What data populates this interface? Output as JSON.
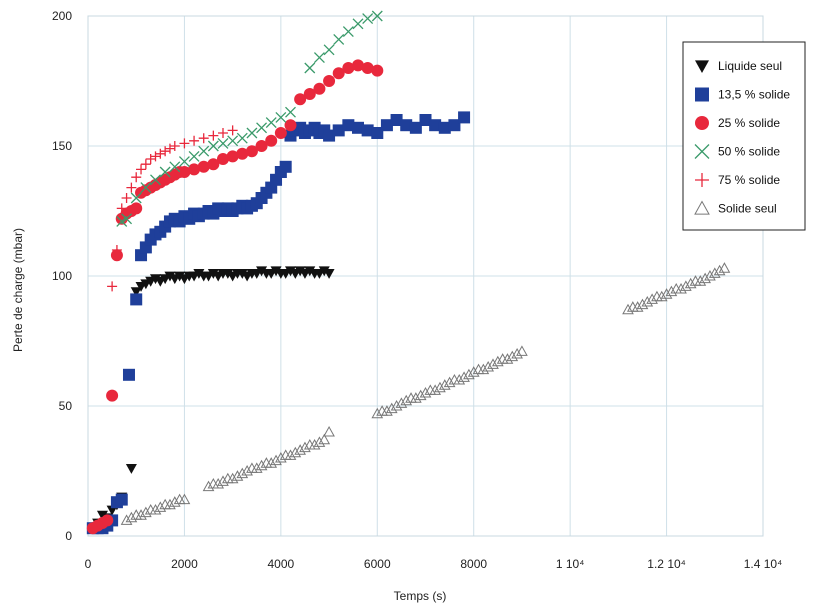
{
  "chart_data": {
    "type": "scatter",
    "xlabel": "Temps (s)",
    "ylabel": "Perte de charge (mbar)",
    "xlim": [
      0,
      14000
    ],
    "ylim": [
      0,
      200
    ],
    "grid": true,
    "legend_position": "top-right",
    "x_ticks": [
      {
        "value": 0,
        "label": "0"
      },
      {
        "value": 2000,
        "label": "2000"
      },
      {
        "value": 4000,
        "label": "4000"
      },
      {
        "value": 6000,
        "label": "6000"
      },
      {
        "value": 8000,
        "label": "8000"
      },
      {
        "value": 10000,
        "label": "1 10⁴"
      },
      {
        "value": 12000,
        "label": "1.2 10⁴"
      },
      {
        "value": 14000,
        "label": "1.4 10⁴"
      }
    ],
    "y_ticks": [
      {
        "value": 0,
        "label": "0"
      },
      {
        "value": 50,
        "label": "50"
      },
      {
        "value": 100,
        "label": "100"
      },
      {
        "value": 150,
        "label": "150"
      },
      {
        "value": 200,
        "label": "200"
      }
    ],
    "series": [
      {
        "name": "Liquide seul",
        "marker": "triangle-down",
        "color": "#111111",
        "points": [
          [
            100,
            3
          ],
          [
            200,
            5
          ],
          [
            300,
            8
          ],
          [
            400,
            7
          ],
          [
            500,
            10
          ],
          [
            600,
            12
          ],
          [
            700,
            15
          ],
          [
            900,
            26
          ],
          [
            1000,
            94
          ],
          [
            1100,
            96
          ],
          [
            1200,
            97
          ],
          [
            1300,
            98
          ],
          [
            1400,
            99
          ],
          [
            1500,
            98
          ],
          [
            1600,
            99
          ],
          [
            1700,
            100
          ],
          [
            1800,
            99
          ],
          [
            1900,
            100
          ],
          [
            2000,
            99
          ],
          [
            2100,
            100
          ],
          [
            2200,
            100
          ],
          [
            2300,
            101
          ],
          [
            2400,
            100
          ],
          [
            2500,
            100
          ],
          [
            2600,
            101
          ],
          [
            2700,
            100
          ],
          [
            2800,
            101
          ],
          [
            2900,
            101
          ],
          [
            3000,
            100
          ],
          [
            3100,
            101
          ],
          [
            3200,
            101
          ],
          [
            3300,
            100
          ],
          [
            3400,
            101
          ],
          [
            3500,
            101
          ],
          [
            3600,
            102
          ],
          [
            3700,
            101
          ],
          [
            3800,
            101
          ],
          [
            3900,
            102
          ],
          [
            4000,
            101
          ],
          [
            4100,
            101
          ],
          [
            4200,
            102
          ],
          [
            4300,
            101
          ],
          [
            4400,
            102
          ],
          [
            4500,
            101
          ],
          [
            4600,
            102
          ],
          [
            4700,
            101
          ],
          [
            4800,
            101
          ],
          [
            4900,
            102
          ],
          [
            5000,
            101
          ]
        ]
      },
      {
        "name": "13,5 % solide",
        "marker": "square",
        "color": "#1f3f9a",
        "points": [
          [
            100,
            3
          ],
          [
            200,
            3
          ],
          [
            300,
            3
          ],
          [
            400,
            4
          ],
          [
            500,
            6
          ],
          [
            600,
            13
          ],
          [
            700,
            14
          ],
          [
            850,
            62
          ],
          [
            1000,
            91
          ],
          [
            1100,
            108
          ],
          [
            1200,
            111
          ],
          [
            1300,
            114
          ],
          [
            1400,
            116
          ],
          [
            1500,
            117
          ],
          [
            1600,
            119
          ],
          [
            1700,
            121
          ],
          [
            1800,
            122
          ],
          [
            1900,
            121
          ],
          [
            2000,
            123
          ],
          [
            2100,
            122
          ],
          [
            2200,
            124
          ],
          [
            2300,
            123
          ],
          [
            2400,
            124
          ],
          [
            2500,
            125
          ],
          [
            2600,
            124
          ],
          [
            2700,
            126
          ],
          [
            2800,
            125
          ],
          [
            2900,
            126
          ],
          [
            3000,
            125
          ],
          [
            3100,
            126
          ],
          [
            3200,
            127
          ],
          [
            3300,
            126
          ],
          [
            3400,
            127
          ],
          [
            3500,
            128
          ],
          [
            3600,
            130
          ],
          [
            3700,
            132
          ],
          [
            3800,
            134
          ],
          [
            3900,
            137
          ],
          [
            4000,
            140
          ],
          [
            4100,
            142
          ],
          [
            4200,
            154
          ],
          [
            4300,
            156
          ],
          [
            4400,
            157
          ],
          [
            4500,
            155
          ],
          [
            4600,
            156
          ],
          [
            4700,
            157
          ],
          [
            4800,
            155
          ],
          [
            4900,
            156
          ],
          [
            5000,
            154
          ],
          [
            5200,
            156
          ],
          [
            5400,
            158
          ],
          [
            5600,
            157
          ],
          [
            5800,
            156
          ],
          [
            6000,
            155
          ],
          [
            6200,
            158
          ],
          [
            6400,
            160
          ],
          [
            6600,
            158
          ],
          [
            6800,
            157
          ],
          [
            7000,
            160
          ],
          [
            7200,
            158
          ],
          [
            7400,
            157
          ],
          [
            7600,
            158
          ],
          [
            7800,
            161
          ]
        ]
      },
      {
        "name": "25 % solide",
        "marker": "circle",
        "color": "#e8283c",
        "points": [
          [
            100,
            3
          ],
          [
            200,
            4
          ],
          [
            300,
            5
          ],
          [
            400,
            6
          ],
          [
            500,
            54
          ],
          [
            600,
            108
          ],
          [
            700,
            122
          ],
          [
            800,
            124
          ],
          [
            900,
            125
          ],
          [
            1000,
            126
          ],
          [
            1100,
            132
          ],
          [
            1200,
            133
          ],
          [
            1300,
            134
          ],
          [
            1400,
            135
          ],
          [
            1500,
            136
          ],
          [
            1600,
            137
          ],
          [
            1700,
            138
          ],
          [
            1800,
            139
          ],
          [
            1900,
            140
          ],
          [
            2000,
            140
          ],
          [
            2200,
            141
          ],
          [
            2400,
            142
          ],
          [
            2600,
            143
          ],
          [
            2800,
            145
          ],
          [
            3000,
            146
          ],
          [
            3200,
            147
          ],
          [
            3400,
            148
          ],
          [
            3600,
            150
          ],
          [
            3800,
            152
          ],
          [
            4000,
            155
          ],
          [
            4200,
            158
          ],
          [
            4400,
            168
          ],
          [
            4600,
            170
          ],
          [
            4800,
            172
          ],
          [
            5000,
            175
          ],
          [
            5200,
            178
          ],
          [
            5400,
            180
          ],
          [
            5600,
            181
          ],
          [
            5800,
            180
          ],
          [
            6000,
            179
          ]
        ]
      },
      {
        "name": "50 % solide",
        "marker": "x",
        "color": "#3a9a6a",
        "points": [
          [
            700,
            121
          ],
          [
            800,
            122
          ],
          [
            1000,
            130
          ],
          [
            1200,
            134
          ],
          [
            1400,
            137
          ],
          [
            1600,
            140
          ],
          [
            1800,
            142
          ],
          [
            2000,
            144
          ],
          [
            2200,
            146
          ],
          [
            2400,
            148
          ],
          [
            2600,
            150
          ],
          [
            2800,
            151
          ],
          [
            3000,
            152
          ],
          [
            3200,
            153
          ],
          [
            3400,
            155
          ],
          [
            3600,
            157
          ],
          [
            3800,
            159
          ],
          [
            4000,
            161
          ],
          [
            4200,
            163
          ],
          [
            4600,
            180
          ],
          [
            4800,
            184
          ],
          [
            5000,
            187
          ],
          [
            5200,
            191
          ],
          [
            5400,
            194
          ],
          [
            5600,
            197
          ],
          [
            5800,
            199
          ],
          [
            6000,
            200
          ]
        ]
      },
      {
        "name": "75 % solide",
        "marker": "plus",
        "color": "#e8283c",
        "points": [
          [
            500,
            96
          ],
          [
            600,
            110
          ],
          [
            700,
            126
          ],
          [
            800,
            130
          ],
          [
            900,
            134
          ],
          [
            1000,
            138
          ],
          [
            1100,
            141
          ],
          [
            1200,
            143
          ],
          [
            1300,
            145
          ],
          [
            1400,
            146
          ],
          [
            1500,
            147
          ],
          [
            1600,
            148
          ],
          [
            1700,
            149
          ],
          [
            1800,
            150
          ],
          [
            2000,
            151
          ],
          [
            2200,
            152
          ],
          [
            2400,
            153
          ],
          [
            2600,
            154
          ],
          [
            2800,
            155
          ],
          [
            3000,
            156
          ]
        ]
      },
      {
        "name": "Solide seul",
        "marker": "triangle-up-open",
        "color": "#777777",
        "points": [
          [
            800,
            6
          ],
          [
            900,
            7
          ],
          [
            1000,
            8
          ],
          [
            1100,
            8
          ],
          [
            1200,
            9
          ],
          [
            1300,
            10
          ],
          [
            1400,
            10
          ],
          [
            1500,
            11
          ],
          [
            1600,
            12
          ],
          [
            1700,
            12
          ],
          [
            1800,
            13
          ],
          [
            1900,
            14
          ],
          [
            2000,
            14
          ],
          [
            2500,
            19
          ],
          [
            2600,
            20
          ],
          [
            2700,
            20
          ],
          [
            2800,
            21
          ],
          [
            2900,
            22
          ],
          [
            3000,
            22
          ],
          [
            3100,
            23
          ],
          [
            3200,
            24
          ],
          [
            3300,
            25
          ],
          [
            3400,
            26
          ],
          [
            3500,
            26
          ],
          [
            3600,
            27
          ],
          [
            3700,
            28
          ],
          [
            3800,
            28
          ],
          [
            3900,
            29
          ],
          [
            4000,
            30
          ],
          [
            4100,
            31
          ],
          [
            4200,
            31
          ],
          [
            4300,
            32
          ],
          [
            4400,
            33
          ],
          [
            4500,
            34
          ],
          [
            4600,
            35
          ],
          [
            4700,
            35
          ],
          [
            4800,
            36
          ],
          [
            4900,
            37
          ],
          [
            5000,
            40
          ],
          [
            6000,
            47
          ],
          [
            6100,
            48
          ],
          [
            6200,
            48
          ],
          [
            6300,
            49
          ],
          [
            6400,
            50
          ],
          [
            6500,
            51
          ],
          [
            6600,
            52
          ],
          [
            6700,
            53
          ],
          [
            6800,
            53
          ],
          [
            6900,
            54
          ],
          [
            7000,
            55
          ],
          [
            7100,
            56
          ],
          [
            7200,
            56
          ],
          [
            7300,
            57
          ],
          [
            7400,
            58
          ],
          [
            7500,
            59
          ],
          [
            7600,
            60
          ],
          [
            7700,
            60
          ],
          [
            7800,
            61
          ],
          [
            7900,
            62
          ],
          [
            8000,
            63
          ],
          [
            8100,
            64
          ],
          [
            8200,
            64
          ],
          [
            8300,
            65
          ],
          [
            8400,
            66
          ],
          [
            8500,
            67
          ],
          [
            8600,
            68
          ],
          [
            8700,
            68
          ],
          [
            8800,
            69
          ],
          [
            8900,
            70
          ],
          [
            9000,
            71
          ],
          [
            11200,
            87
          ],
          [
            11300,
            88
          ],
          [
            11400,
            88
          ],
          [
            11500,
            89
          ],
          [
            11600,
            90
          ],
          [
            11700,
            91
          ],
          [
            11800,
            92
          ],
          [
            11900,
            92
          ],
          [
            12000,
            93
          ],
          [
            12100,
            94
          ],
          [
            12200,
            95
          ],
          [
            12300,
            95
          ],
          [
            12400,
            96
          ],
          [
            12500,
            97
          ],
          [
            12600,
            98
          ],
          [
            12700,
            98
          ],
          [
            12800,
            99
          ],
          [
            12900,
            100
          ],
          [
            13000,
            101
          ],
          [
            13100,
            102
          ],
          [
            13200,
            103
          ]
        ]
      }
    ]
  }
}
